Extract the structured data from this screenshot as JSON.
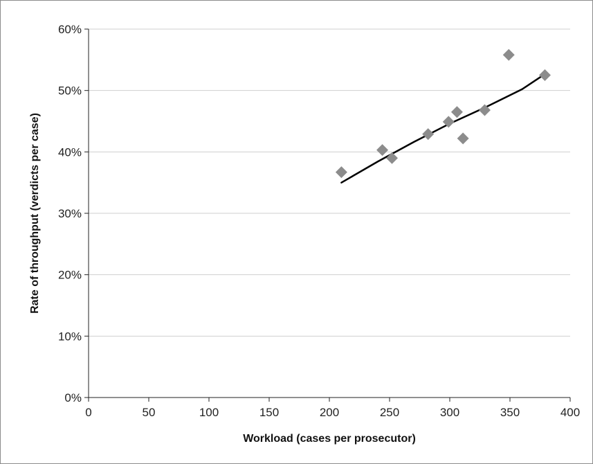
{
  "chart_data": {
    "type": "scatter",
    "title": "",
    "xlabel": "Workload (cases per prosecutor)",
    "ylabel": "Rate of throughput (verdicts per case)",
    "xlim": [
      0,
      400
    ],
    "ylim": [
      0,
      60
    ],
    "x_ticks": [
      "0",
      "50",
      "100",
      "150",
      "200",
      "250",
      "300",
      "350",
      "400"
    ],
    "y_ticks": [
      "0%",
      "10%",
      "20%",
      "30%",
      "40%",
      "50%",
      "60%"
    ],
    "grid": "horizontal",
    "legend": "none",
    "marker_color": "#8c8c8c",
    "trendline_color": "#000000",
    "points": [
      {
        "x": 210,
        "y": 36.7
      },
      {
        "x": 244,
        "y": 40.3
      },
      {
        "x": 252,
        "y": 39.0
      },
      {
        "x": 282,
        "y": 42.9
      },
      {
        "x": 299,
        "y": 44.9
      },
      {
        "x": 306,
        "y": 46.5
      },
      {
        "x": 311,
        "y": 42.2
      },
      {
        "x": 329,
        "y": 46.8
      },
      {
        "x": 349,
        "y": 55.8
      },
      {
        "x": 379,
        "y": 52.5
      }
    ],
    "trendline": [
      {
        "x": 210,
        "y": 35.0
      },
      {
        "x": 240,
        "y": 38.4
      },
      {
        "x": 270,
        "y": 41.6
      },
      {
        "x": 300,
        "y": 44.6
      },
      {
        "x": 330,
        "y": 47.3
      },
      {
        "x": 360,
        "y": 50.2
      },
      {
        "x": 380,
        "y": 52.8
      }
    ]
  }
}
